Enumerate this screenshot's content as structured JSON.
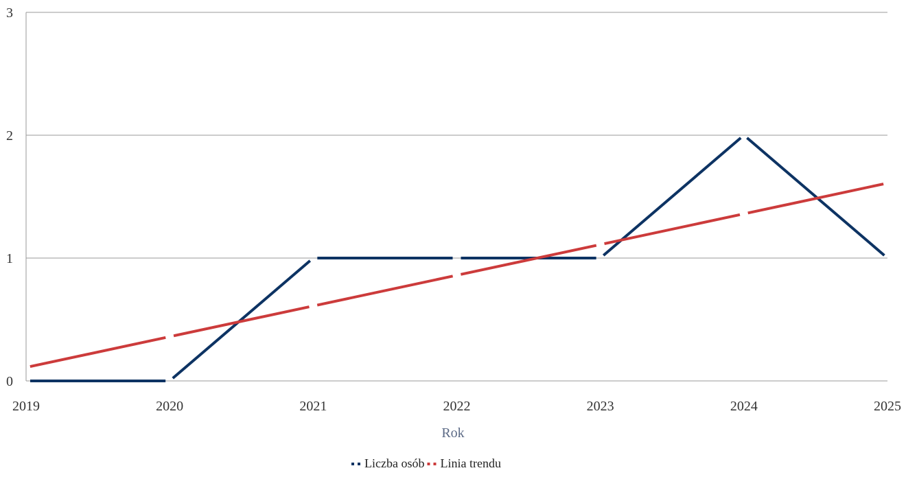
{
  "chart_data": {
    "type": "line",
    "xlabel": "Rok",
    "ylabel": "",
    "x": [
      2019,
      2020,
      2021,
      2022,
      2023,
      2024,
      2025
    ],
    "xlim": [
      2019,
      2025
    ],
    "ylim": [
      0,
      3
    ],
    "y_ticks": [
      0,
      1,
      2,
      3
    ],
    "grid": true,
    "legend_position": "bottom-center",
    "series": [
      {
        "name": "Liczba osób",
        "color": "#0d3363",
        "values": [
          0,
          0,
          1,
          1,
          1,
          2,
          1
        ]
      },
      {
        "name": "Linia trendu",
        "color": "#cc3b3b",
        "values": [
          0.11,
          0.36,
          0.61,
          0.86,
          1.11,
          1.36,
          1.61
        ]
      }
    ]
  }
}
